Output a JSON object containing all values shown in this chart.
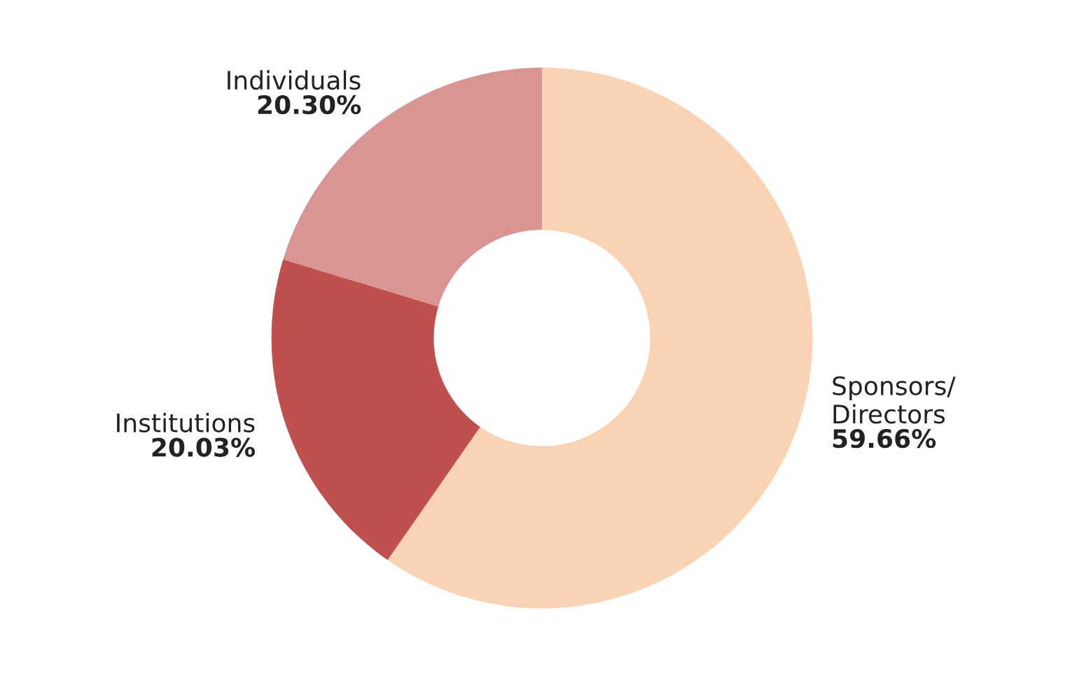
{
  "chart_data": {
    "type": "donut",
    "categories": [
      "Sponsors/\nDirectors",
      "Institutions",
      "Individuals"
    ],
    "values": [
      59.66,
      20.03,
      20.3
    ],
    "value_labels": [
      "59.66%",
      "20.03%",
      "20.30%"
    ],
    "colors": [
      "#f9d3b4",
      "#c0504d",
      "#d99594"
    ],
    "legend": false
  }
}
